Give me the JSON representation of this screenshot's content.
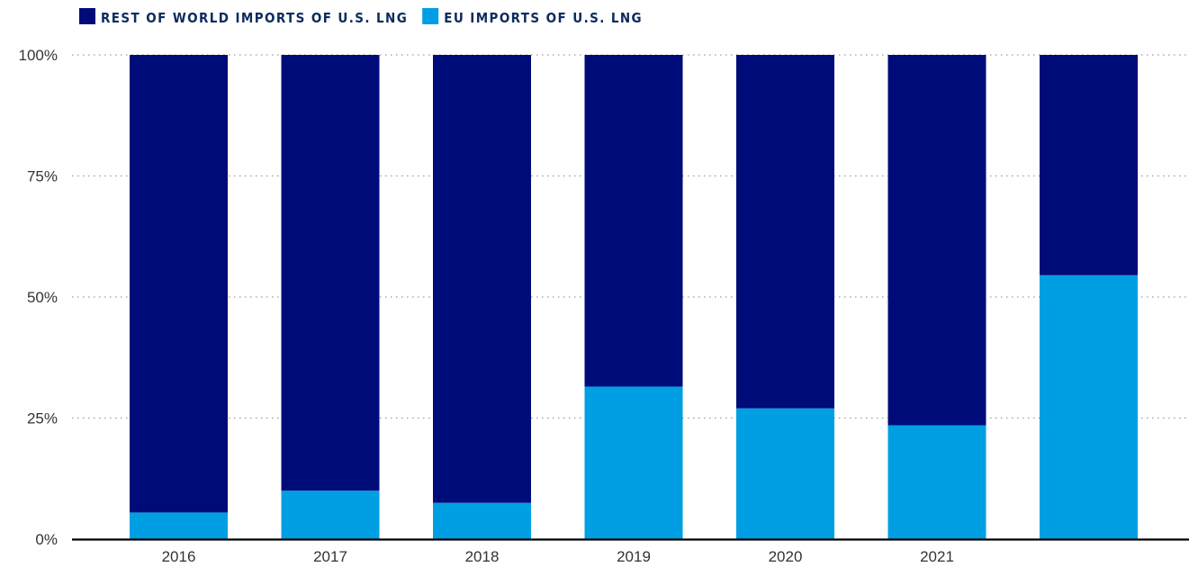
{
  "chart_data": {
    "type": "bar",
    "stacked": true,
    "categories": [
      "2016",
      "2017",
      "2018",
      "2019",
      "2020",
      "2021",
      ""
    ],
    "series": [
      {
        "name": "EU IMPORTS OF U.S. LNG",
        "color": "#009fe3",
        "values": [
          5.5,
          10,
          7.5,
          31.5,
          27,
          23.5,
          54.5
        ]
      },
      {
        "name": "REST OF WORLD IMPORTS OF U.S. LNG",
        "color": "#000b7a",
        "values": [
          94.5,
          90,
          92.5,
          68.5,
          73,
          76.5,
          45.5
        ]
      }
    ],
    "legend": {
      "placement": "top-left",
      "order": [
        "REST OF WORLD IMPORTS OF U.S. LNG",
        "EU IMPORTS OF U.S. LNG"
      ]
    },
    "ylim": [
      0,
      100
    ],
    "yticks": [
      "0%",
      "25%",
      "50%",
      "75%",
      "100%"
    ],
    "ytick_values": [
      0,
      25,
      50,
      75,
      100
    ],
    "grid": "dotted horizontal",
    "title": "",
    "xlabel": "",
    "ylabel": ""
  }
}
